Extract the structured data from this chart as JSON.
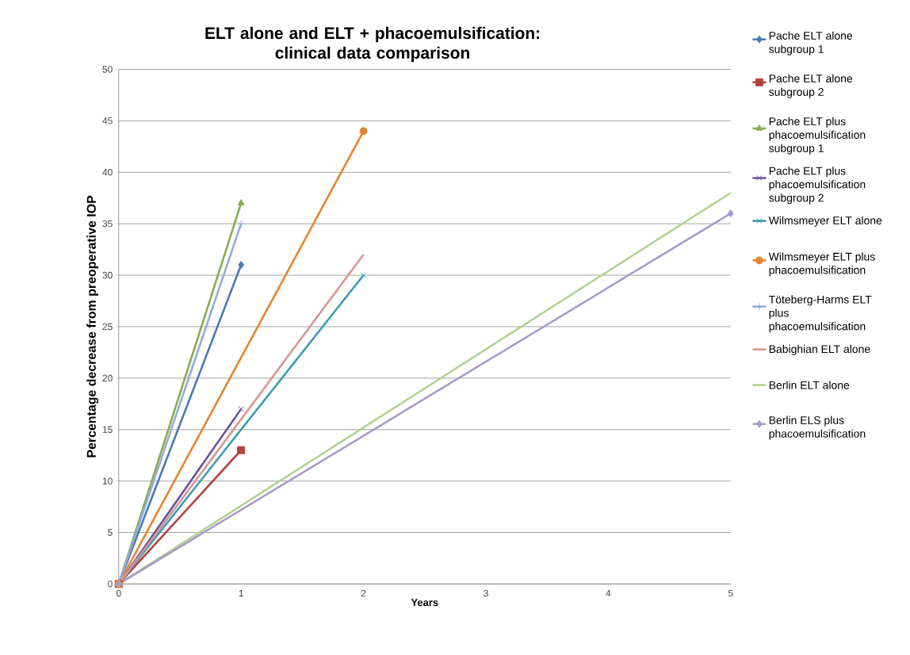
{
  "chart_data": {
    "type": "line",
    "title": "ELT alone and ELT + phacoemulsification: clinical data comparison",
    "xlabel": "Years",
    "ylabel": "Percentage decrease from preoperative IOP",
    "xlim": [
      0,
      5
    ],
    "ylim": [
      0,
      50
    ],
    "xticks": [
      0,
      1,
      2,
      3,
      4,
      5
    ],
    "yticks": [
      0,
      5,
      10,
      15,
      20,
      25,
      30,
      35,
      40,
      45,
      50
    ],
    "grid": "y",
    "legend": "right",
    "series": [
      {
        "name": "Pache ELT alone subgroup 1",
        "color": "#4a7ab5",
        "marker": "diamond",
        "x": [
          0,
          1
        ],
        "values": [
          0,
          31
        ]
      },
      {
        "name": "Pache ELT alone subgroup 2",
        "color": "#b5403e",
        "marker": "square",
        "x": [
          0,
          1
        ],
        "values": [
          0,
          13
        ]
      },
      {
        "name": "Pache ELT plus phacoemulsification subgroup 1",
        "color": "#8aab4f",
        "marker": "triangle",
        "x": [
          0,
          1
        ],
        "values": [
          0,
          37
        ]
      },
      {
        "name": "Pache ELT plus phacoemulsification subgroup 2",
        "color": "#6e5497",
        "marker": "cross",
        "x": [
          0,
          1
        ],
        "values": [
          0,
          17
        ]
      },
      {
        "name": "Wilmsmeyer ELT alone",
        "color": "#3a9bb0",
        "marker": "cross",
        "x": [
          0,
          2
        ],
        "values": [
          0,
          30
        ]
      },
      {
        "name": "Wilmsmeyer ELT plus phacoemulsification",
        "color": "#e4862f",
        "marker": "circle",
        "x": [
          0,
          2
        ],
        "values": [
          0,
          44
        ]
      },
      {
        "name": "Töteberg-Harms ELT plus phacoemulsification",
        "color": "#93acd6",
        "marker": "plus",
        "x": [
          0,
          1
        ],
        "values": [
          0,
          35
        ]
      },
      {
        "name": "Babighian ELT alone",
        "color": "#d79594",
        "marker": "none",
        "x": [
          0,
          2
        ],
        "values": [
          0,
          32
        ]
      },
      {
        "name": "Berlin ELT alone",
        "color": "#b5d192",
        "marker": "none",
        "x": [
          0,
          5
        ],
        "values": [
          0,
          38
        ]
      },
      {
        "name": "Berlin ELS plus phacoemulsification",
        "color": "#a89bc8",
        "marker": "diamond",
        "x": [
          0,
          5
        ],
        "values": [
          0,
          36
        ]
      }
    ]
  }
}
